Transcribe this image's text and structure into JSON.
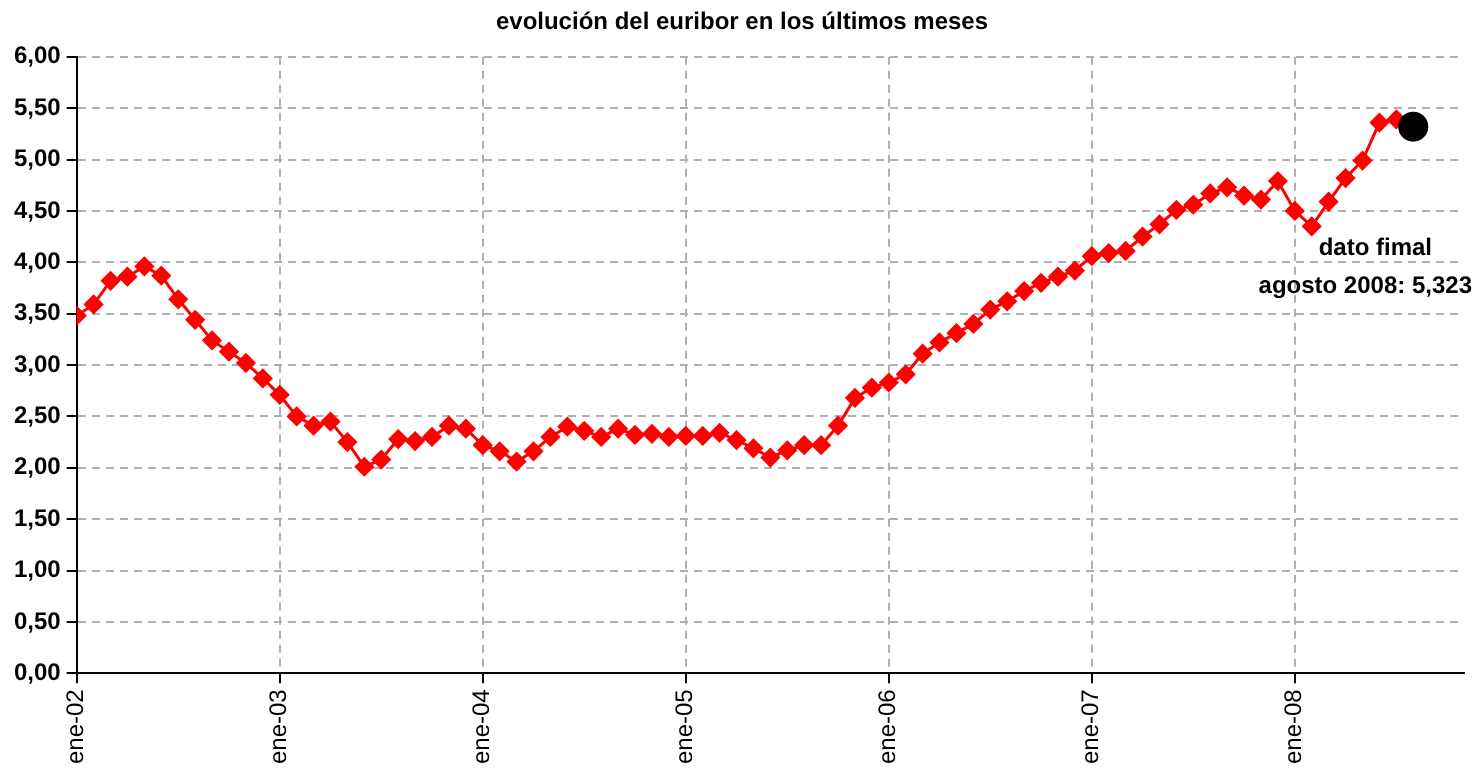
{
  "chart_data": {
    "type": "line",
    "title": "evolución del euribor en los últimos meses",
    "x": [
      "2002-01",
      "2002-02",
      "2002-03",
      "2002-04",
      "2002-05",
      "2002-06",
      "2002-07",
      "2002-08",
      "2002-09",
      "2002-10",
      "2002-11",
      "2002-12",
      "2003-01",
      "2003-02",
      "2003-03",
      "2003-04",
      "2003-05",
      "2003-06",
      "2003-07",
      "2003-08",
      "2003-09",
      "2003-10",
      "2003-11",
      "2003-12",
      "2004-01",
      "2004-02",
      "2004-03",
      "2004-04",
      "2004-05",
      "2004-06",
      "2004-07",
      "2004-08",
      "2004-09",
      "2004-10",
      "2004-11",
      "2004-12",
      "2005-01",
      "2005-02",
      "2005-03",
      "2005-04",
      "2005-05",
      "2005-06",
      "2005-07",
      "2005-08",
      "2005-09",
      "2005-10",
      "2005-11",
      "2005-12",
      "2006-01",
      "2006-02",
      "2006-03",
      "2006-04",
      "2006-05",
      "2006-06",
      "2006-07",
      "2006-08",
      "2006-09",
      "2006-10",
      "2006-11",
      "2006-12",
      "2007-01",
      "2007-02",
      "2007-03",
      "2007-04",
      "2007-05",
      "2007-06",
      "2007-07",
      "2007-08",
      "2007-09",
      "2007-10",
      "2007-11",
      "2007-12",
      "2008-01",
      "2008-02",
      "2008-03",
      "2008-04",
      "2008-05",
      "2008-06",
      "2008-07"
    ],
    "series": [
      {
        "type": "line",
        "color": "#ff0000",
        "marker": "diamond",
        "values": [
          3.48,
          3.59,
          3.82,
          3.86,
          3.96,
          3.87,
          3.64,
          3.44,
          3.24,
          3.13,
          3.02,
          2.87,
          2.71,
          2.5,
          2.41,
          2.45,
          2.25,
          2.01,
          2.08,
          2.28,
          2.26,
          2.3,
          2.41,
          2.38,
          2.22,
          2.16,
          2.06,
          2.16,
          2.3,
          2.4,
          2.36,
          2.3,
          2.38,
          2.32,
          2.33,
          2.3,
          2.31,
          2.31,
          2.34,
          2.27,
          2.19,
          2.1,
          2.17,
          2.22,
          2.22,
          2.41,
          2.68,
          2.78,
          2.83,
          2.91,
          3.11,
          3.22,
          3.31,
          3.4,
          3.54,
          3.62,
          3.72,
          3.8,
          3.86,
          3.92,
          4.06,
          4.09,
          4.11,
          4.25,
          4.37,
          4.51,
          4.56,
          4.67,
          4.73,
          4.65,
          4.61,
          4.79,
          4.5,
          4.35,
          4.59,
          4.82,
          4.99,
          5.36,
          5.39
        ]
      },
      {
        "type": "scatter",
        "color": "#000000",
        "marker": "circle",
        "x": [
          "2008-08"
        ],
        "values": [
          5.32
        ]
      }
    ],
    "annotations": [
      "dato fimal\nagosto 2008: 5,323"
    ],
    "xlim": [
      "2002-01",
      "2008-11"
    ],
    "xticks": [
      {
        "value": "2002-01",
        "label": "ene-02"
      },
      {
        "value": "2003-01",
        "label": "ene-03"
      },
      {
        "value": "2004-01",
        "label": "ene-04"
      },
      {
        "value": "2005-01",
        "label": "ene-05"
      },
      {
        "value": "2006-01",
        "label": "ene-06"
      },
      {
        "value": "2007-01",
        "label": "ene-07"
      },
      {
        "value": "2008-01",
        "label": "ene-08"
      }
    ],
    "ylim": [
      0,
      6
    ],
    "yticks": [
      {
        "value": 0,
        "label": "0,00"
      },
      {
        "value": 0.5,
        "label": "0,50"
      },
      {
        "value": 1,
        "label": "1,00"
      },
      {
        "value": 1.5,
        "label": "1,50"
      },
      {
        "value": 2,
        "label": "2,00"
      },
      {
        "value": 2.5,
        "label": "2,50"
      },
      {
        "value": 3,
        "label": "3,00"
      },
      {
        "value": 3.5,
        "label": "3,50"
      },
      {
        "value": 4,
        "label": "4,00"
      },
      {
        "value": 4.5,
        "label": "4,50"
      },
      {
        "value": 5,
        "label": "5,00"
      },
      {
        "value": 5.5,
        "label": "5,50"
      },
      {
        "value": 6,
        "label": "6,00"
      }
    ],
    "grid": true,
    "legend": false
  }
}
